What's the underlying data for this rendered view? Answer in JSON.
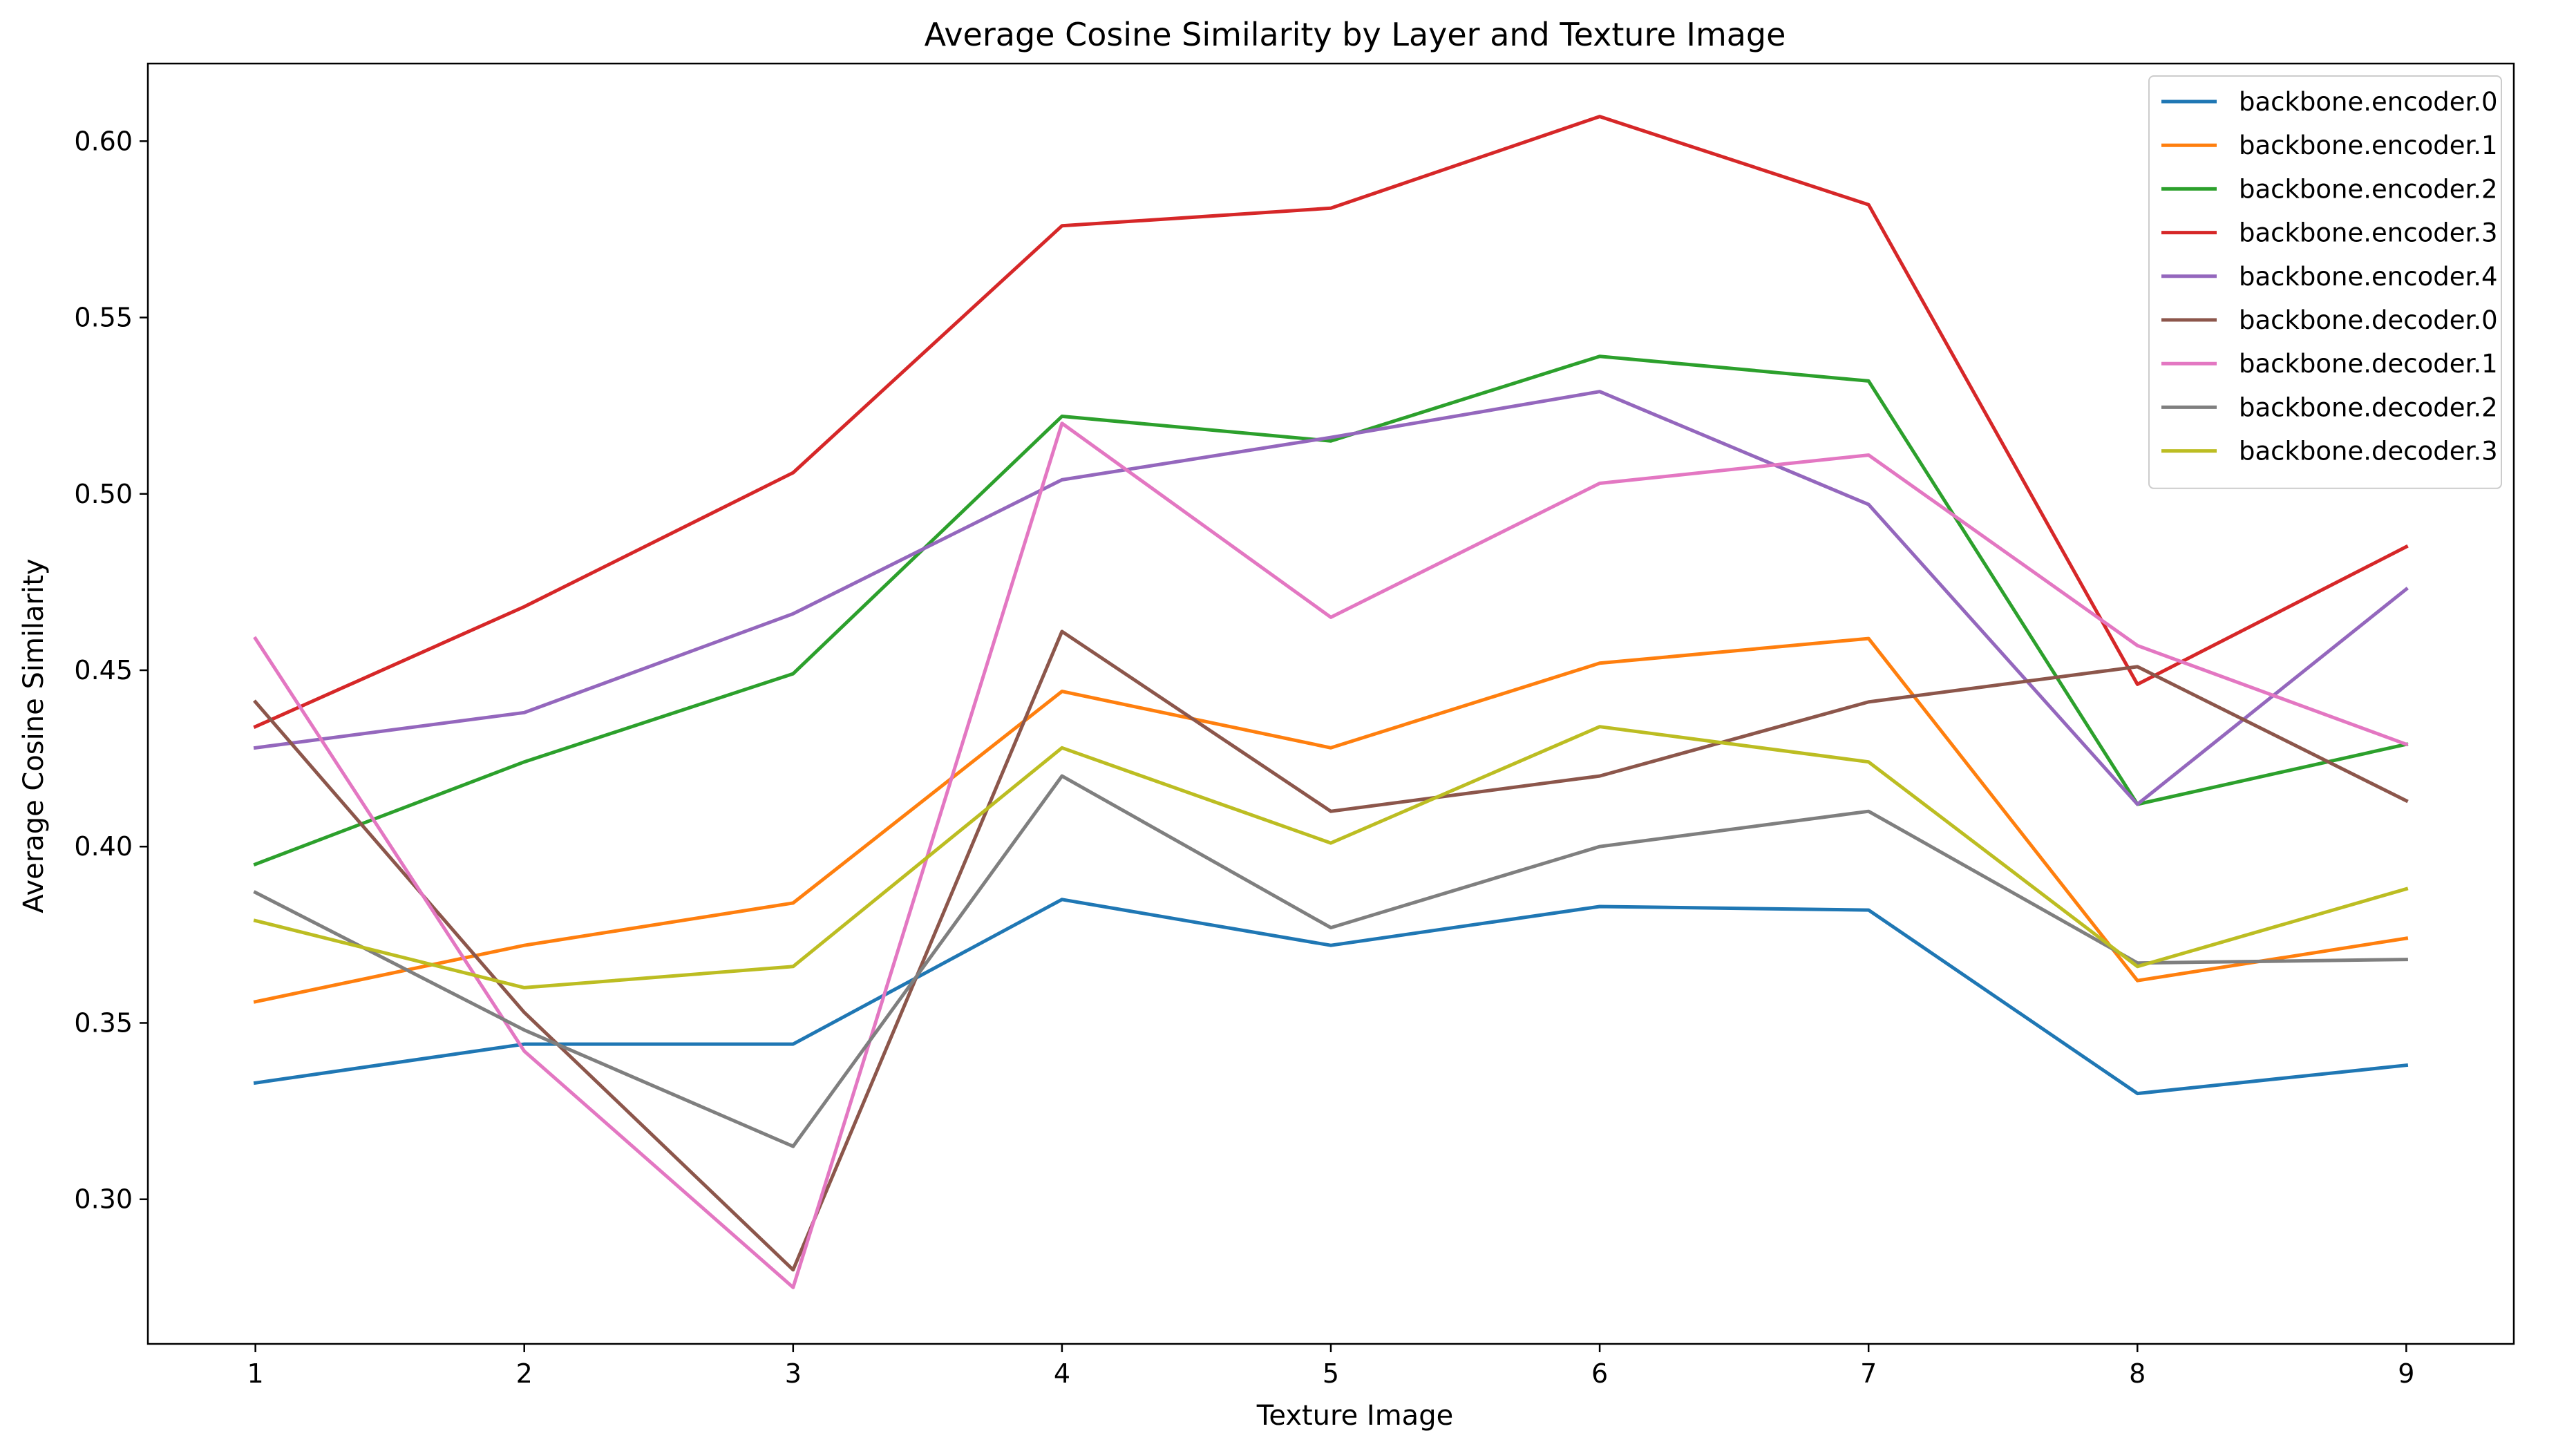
{
  "chart_data": {
    "type": "line",
    "title": "Average Cosine Similarity by Layer and Texture Image",
    "xlabel": "Texture Image",
    "ylabel": "Average Cosine Similarity",
    "x": [
      1,
      2,
      3,
      4,
      5,
      6,
      7,
      8,
      9
    ],
    "x_tick_labels": [
      "1",
      "2",
      "3",
      "4",
      "5",
      "6",
      "7",
      "8",
      "9"
    ],
    "y_ticks": [
      0.3,
      0.35,
      0.4,
      0.45,
      0.5,
      0.55,
      0.6
    ],
    "y_tick_labels": [
      "0.30",
      "0.35",
      "0.40",
      "0.45",
      "0.50",
      "0.55",
      "0.60"
    ],
    "xlim": [
      0.6,
      9.4
    ],
    "ylim": [
      0.259,
      0.622
    ],
    "grid": false,
    "legend_position": "top-right",
    "series": [
      {
        "name": "backbone.encoder.0",
        "color": "#1f77b4",
        "values": [
          0.333,
          0.344,
          0.344,
          0.385,
          0.372,
          0.383,
          0.382,
          0.33,
          0.338
        ]
      },
      {
        "name": "backbone.encoder.1",
        "color": "#ff7f0e",
        "values": [
          0.356,
          0.372,
          0.384,
          0.444,
          0.428,
          0.452,
          0.459,
          0.362,
          0.374
        ]
      },
      {
        "name": "backbone.encoder.2",
        "color": "#2ca02c",
        "values": [
          0.395,
          0.424,
          0.449,
          0.522,
          0.515,
          0.539,
          0.532,
          0.412,
          0.429
        ]
      },
      {
        "name": "backbone.encoder.3",
        "color": "#d62728",
        "values": [
          0.434,
          0.468,
          0.506,
          0.576,
          0.581,
          0.607,
          0.582,
          0.446,
          0.485
        ]
      },
      {
        "name": "backbone.encoder.4",
        "color": "#9467bd",
        "values": [
          0.428,
          0.438,
          0.466,
          0.504,
          0.516,
          0.529,
          0.497,
          0.412,
          0.473
        ]
      },
      {
        "name": "backbone.decoder.0",
        "color": "#8c564b",
        "values": [
          0.441,
          0.353,
          0.28,
          0.461,
          0.41,
          0.42,
          0.441,
          0.451,
          0.413
        ]
      },
      {
        "name": "backbone.decoder.1",
        "color": "#e377c2",
        "values": [
          0.459,
          0.342,
          0.275,
          0.52,
          0.465,
          0.503,
          0.511,
          0.457,
          0.429
        ]
      },
      {
        "name": "backbone.decoder.2",
        "color": "#7f7f7f",
        "values": [
          0.387,
          0.348,
          0.315,
          0.42,
          0.377,
          0.4,
          0.41,
          0.367,
          0.368
        ]
      },
      {
        "name": "backbone.decoder.3",
        "color": "#bcbd22",
        "values": [
          0.379,
          0.36,
          0.366,
          0.428,
          0.401,
          0.434,
          0.424,
          0.366,
          0.388
        ]
      }
    ]
  }
}
